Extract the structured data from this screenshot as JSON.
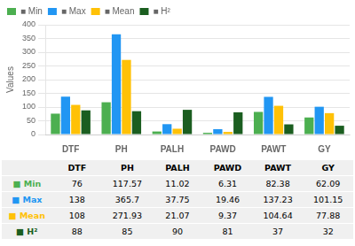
{
  "chart_data": {
    "type": "bar",
    "categories": [
      "DTF",
      "PH",
      "PALH",
      "PAWD",
      "PAWT",
      "GY"
    ],
    "series": [
      {
        "name": "■ Min",
        "color": "#4CAF50",
        "values": [
          76,
          117.57,
          11.02,
          6.31,
          82.38,
          62.09
        ]
      },
      {
        "name": "■ Max",
        "color": "#2196F3",
        "values": [
          138,
          365.7,
          37.75,
          19.46,
          137.23,
          101.15
        ]
      },
      {
        "name": "■ Mean",
        "color": "#FFC107",
        "values": [
          108,
          271.93,
          21.07,
          9.37,
          104.64,
          77.88
        ]
      },
      {
        "name": "■ H²",
        "color": "#1B5E20",
        "values": [
          88,
          85,
          90,
          81,
          37,
          32
        ]
      }
    ],
    "ylabel": "Values",
    "ylim": [
      0,
      400
    ],
    "yticks": [
      0,
      50,
      100,
      150,
      200,
      250,
      300,
      350,
      400
    ],
    "grid": true,
    "legend": "upper left"
  }
}
